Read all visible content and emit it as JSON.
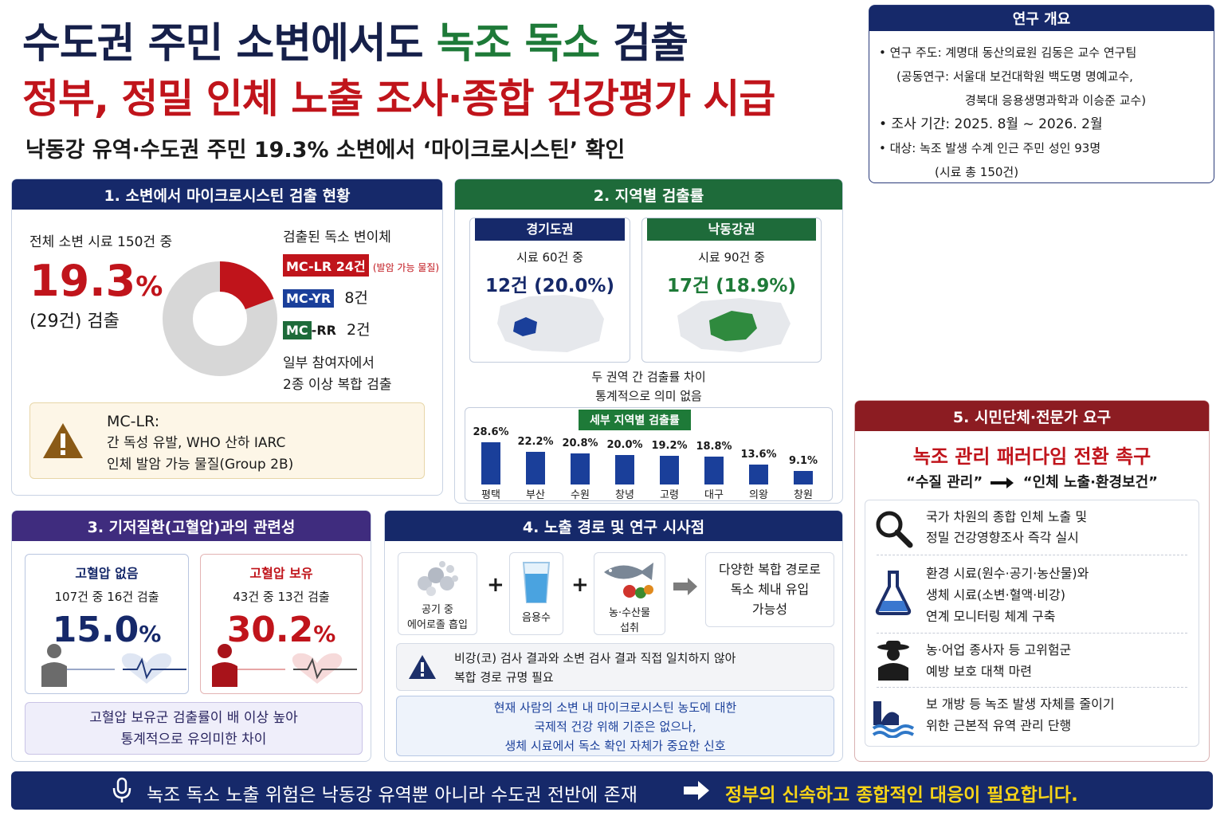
{
  "header": {
    "title_part1": "수도권 주민 소변에서도",
    "title_highlight": "녹조 독소",
    "title_part2": "검출",
    "subtitle": "정부, 정밀 인체 노출 조사·종합 건강평가 시급",
    "tagline": "낙동강 유역·수도권 주민 19.3% 소변에서 ‘마이크로시스틴’ 확인"
  },
  "overview": {
    "title": "연구 개요",
    "lead": "• 연구 주도: 계명대 동산의료원 김동은 교수 연구팀",
    "co1": "(공동연구: 서울대 보건대학원 백도명 명예교수,",
    "co2": "경북대 응용생명과학과 이승준 교수)",
    "period": "• 조사 기간: 2025. 8월 ~ 2026. 2월",
    "target1": "• 대상:  녹조 발생 수계 인근 주민 성인 93명",
    "target2": "(시료 총 150건)"
  },
  "section1": {
    "title": "1. 소변에서 마이크로시스틴 검출 현황",
    "intro": "전체 소변 시료 150건 중",
    "big_number": "19.3",
    "big_unit": "%",
    "count_line": "(29건) 검출",
    "variants_title": "검출된 독소 변이체",
    "v1_label": "MC-LR 24건",
    "v1_note": "(발암 가능 물질)",
    "v2_label": "MC-YR",
    "v2_count": "8건",
    "v3_label_a": "MC",
    "v3_label_b": "-RR",
    "v3_count": "2건",
    "complex1": "일부 참여자에서",
    "complex2": "2종 이상 복합 검출",
    "warn_title": "MC-LR:",
    "warn_line1": "간 독성 유발, WHO 산하 IARC",
    "warn_line2": "인체 발암 가능 물질(Group 2B)",
    "donut_fraction": 0.193
  },
  "section2": {
    "title": "2. 지역별 검출률",
    "gyeonggi_title": "경기도권",
    "gyeonggi_sample": "시료 60건 중",
    "gyeonggi_result": "12건 (20.0%)",
    "nakdong_title": "낙동강권",
    "nakdong_sample": "시료 90건 중",
    "nakdong_result": "17건 (18.9%)",
    "note1": "두 권역 간 검출률 차이",
    "note2": "통계적으로 의미 없음",
    "chart_title": "세부 지역별 검출률"
  },
  "chart_data": {
    "type": "bar",
    "title": "세부 지역별 검출률",
    "categories": [
      "평택",
      "부산",
      "수원",
      "창녕",
      "고령",
      "대구",
      "의왕",
      "창원"
    ],
    "values": [
      28.6,
      22.2,
      20.8,
      20.0,
      19.2,
      18.8,
      13.6,
      9.1
    ],
    "value_labels": [
      "28.6%",
      "22.2%",
      "20.8%",
      "20.0%",
      "19.2%",
      "18.8%",
      "13.6%",
      "9.1%"
    ],
    "color": "#1a3f9a",
    "ylim": [
      0,
      30
    ]
  },
  "section3": {
    "title": "3. 기저질환(고혈압)과의 관련성",
    "no_title": "고혈압 없음",
    "no_detail": "107건 중 16건 검출",
    "no_value": "15.0",
    "yes_title": "고혈압 보유",
    "yes_detail": "43건 중 13건 검출",
    "yes_value": "30.2",
    "unit": "%",
    "note1": "고혈압 보유군 검출률이 배 이상 높아",
    "note2": "통계적으로 유의미한 차이"
  },
  "section4": {
    "title": "4. 노출 경로 및 연구 시사점",
    "route1_a": "공기 중",
    "route1_b": "에어로졸 흡입",
    "route2": "음용수",
    "route3_a": "농·수산물",
    "route3_b": "섭취",
    "plus": "+",
    "result1": "다양한 복합 경로로",
    "result2": "독소 체내 유입",
    "result3": "가능성",
    "warn1": "비강(코) 검사 결과와 소변 검사 결과 직접 일치하지 않아",
    "warn2": "복합 경로 규명 필요",
    "info1": "현재 사람의 소변 내 마이크로시스틴 농도에 대한",
    "info2": "국제적 건강 위해 기준은 없으나,",
    "info3": "생체 시료에서 독소 확인 자체가 중요한 신호"
  },
  "section5": {
    "title": "5. 시민단체·전문가 요구",
    "headline": "녹조 관리 패러다임 전환 촉구",
    "from": "“수질 관리”",
    "to": "“인체 노출·환경보건”",
    "items": [
      {
        "l1": "국가 차원의 종합 인체 노출 및",
        "l2": "정밀 건강영향조사 즉각 실시",
        "l3": ""
      },
      {
        "l1": "환경 시료(원수·공기·농산물)와",
        "l2": "생체 시료(소변·혈액·비강)",
        "l3": "연계 모니터링 체계 구축"
      },
      {
        "l1": "농·어업 종사자 등 고위험군",
        "l2": "예방 보호 대책 마련",
        "l3": ""
      },
      {
        "l1": "보 개방 등 녹조 발생 자체를 줄이기",
        "l2": "위한 근본적 유역 관리 단행",
        "l3": ""
      }
    ]
  },
  "footer": {
    "text": "녹조 독소 노출 위험은 낙동강 유역뿐 아니라 수도권 전반에 존재",
    "highlight": "정부의 신속하고 종합적인 대응이 필요합니다."
  }
}
